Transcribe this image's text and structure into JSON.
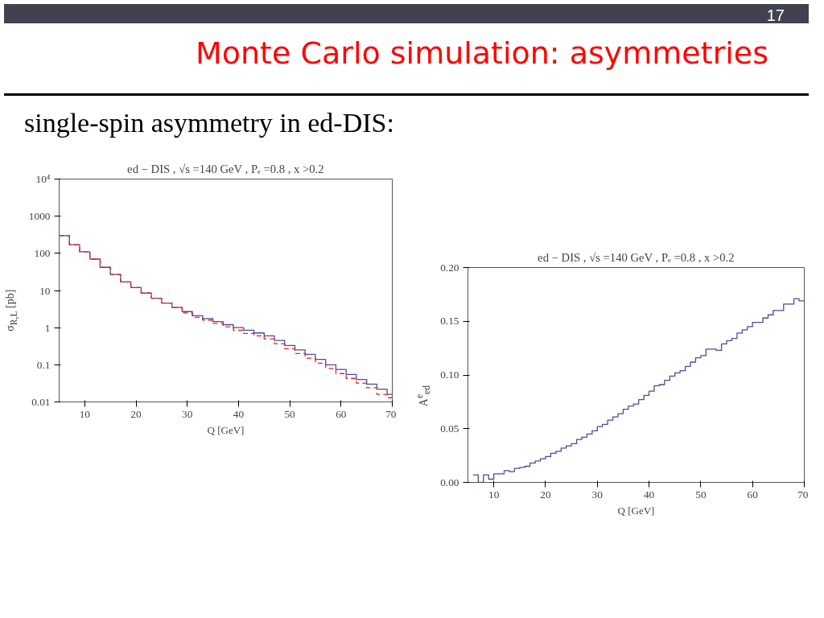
{
  "chart_data": [
    {
      "type": "step",
      "title": "ed − DIS , √s =140 GeV , Pₑ =0.8 , x >0.2",
      "xlabel": "Q [GeV]",
      "ylabel": "σ$_{R,L}$ [pb]",
      "log": "y",
      "grid": false,
      "annotations": [
        "17",
        "Monte Carlo simulation: asymmetries",
        "single-spin asymmetry in ed-DIS:"
      ],
      "xlim": [
        5,
        70
      ],
      "xticks": [
        10,
        20,
        30,
        40,
        50,
        60,
        70
      ],
      "ylim": [
        0.01,
        10000
      ],
      "yticks": [
        0.01,
        0.1,
        1,
        10,
        100,
        1000,
        {
          "value": 10000,
          "label": "10⁴"
        }
      ],
      "x": [
        5,
        7,
        9,
        11,
        13,
        15,
        17,
        19,
        21,
        23,
        25,
        27,
        29,
        31,
        33,
        35,
        37,
        39,
        41,
        43,
        45,
        47,
        49,
        51,
        53,
        55,
        57,
        59,
        61,
        63,
        65,
        67,
        69,
        70
      ],
      "series": [
        {
          "color": "#4b4b9b",
          "line_style": "solid",
          "values": [
            300,
            170,
            110,
            70,
            42,
            27,
            17,
            12,
            8.5,
            6.2,
            4.6,
            3.5,
            2.7,
            2.1,
            1.75,
            1.45,
            1.2,
            1.0,
            0.85,
            0.72,
            0.6,
            0.45,
            0.33,
            0.25,
            0.19,
            0.14,
            0.1,
            0.075,
            0.055,
            0.04,
            0.03,
            0.022,
            0.016,
            0.016
          ]
        },
        {
          "color": "#e8202a",
          "line_style": "dashed",
          "values": [
            300,
            170,
            110,
            70,
            42,
            27,
            17,
            12,
            8.5,
            6.2,
            4.6,
            3.5,
            2.5,
            1.9,
            1.6,
            1.3,
            1.05,
            0.85,
            0.7,
            0.6,
            0.5,
            0.37,
            0.27,
            0.2,
            0.15,
            0.11,
            0.08,
            0.058,
            0.043,
            0.032,
            0.024,
            0.016,
            0.013,
            0.013
          ]
        }
      ]
    },
    {
      "type": "step",
      "title": "ed − DIS , √s =140 GeV , Pₑ =0.8 , x >0.2",
      "xlabel": "Q [GeV]",
      "ylabel": "A$^{e}$$_{ed}$",
      "grid": false,
      "xlim": [
        5,
        70
      ],
      "xticks": [
        10,
        20,
        30,
        40,
        50,
        60,
        70
      ],
      "ylim": [
        0,
        0.2
      ],
      "yticks": [
        {
          "value": 0,
          "label": "0.00"
        },
        {
          "value": 0.05,
          "label": "0.05"
        },
        {
          "value": 0.1,
          "label": "0.10"
        },
        {
          "value": 0.15,
          "label": "0.15"
        },
        {
          "value": 0.2,
          "label": "0.20"
        }
      ],
      "x": [
        6,
        7,
        8,
        9,
        10,
        11,
        12,
        13,
        14,
        15,
        16,
        17,
        18,
        19,
        20,
        21,
        22,
        23,
        24,
        25,
        26,
        27,
        28,
        29,
        30,
        31,
        32,
        33,
        34,
        35,
        36,
        37,
        38,
        39,
        40,
        41,
        42,
        43,
        44,
        45,
        46,
        47,
        48,
        49,
        50,
        51,
        52,
        53,
        54,
        55,
        56,
        57,
        58,
        59,
        60,
        61,
        62,
        63,
        64,
        65,
        66,
        67,
        68,
        69,
        70
      ],
      "series": [
        {
          "color": "#4b4b9b",
          "line_style": "solid",
          "values": [
            0.007,
            0.0,
            0.007,
            0.003,
            0.008,
            0.008,
            0.011,
            0.01,
            0.013,
            0.014,
            0.015,
            0.018,
            0.02,
            0.022,
            0.024,
            0.027,
            0.029,
            0.032,
            0.034,
            0.036,
            0.04,
            0.042,
            0.045,
            0.048,
            0.052,
            0.054,
            0.058,
            0.061,
            0.064,
            0.068,
            0.071,
            0.073,
            0.077,
            0.081,
            0.085,
            0.09,
            0.091,
            0.095,
            0.099,
            0.102,
            0.104,
            0.108,
            0.112,
            0.116,
            0.118,
            0.124,
            0.124,
            0.123,
            0.129,
            0.132,
            0.134,
            0.139,
            0.142,
            0.145,
            0.149,
            0.149,
            0.153,
            0.156,
            0.16,
            0.16,
            0.166,
            0.166,
            0.171,
            0.169,
            0.169
          ]
        }
      ]
    }
  ]
}
